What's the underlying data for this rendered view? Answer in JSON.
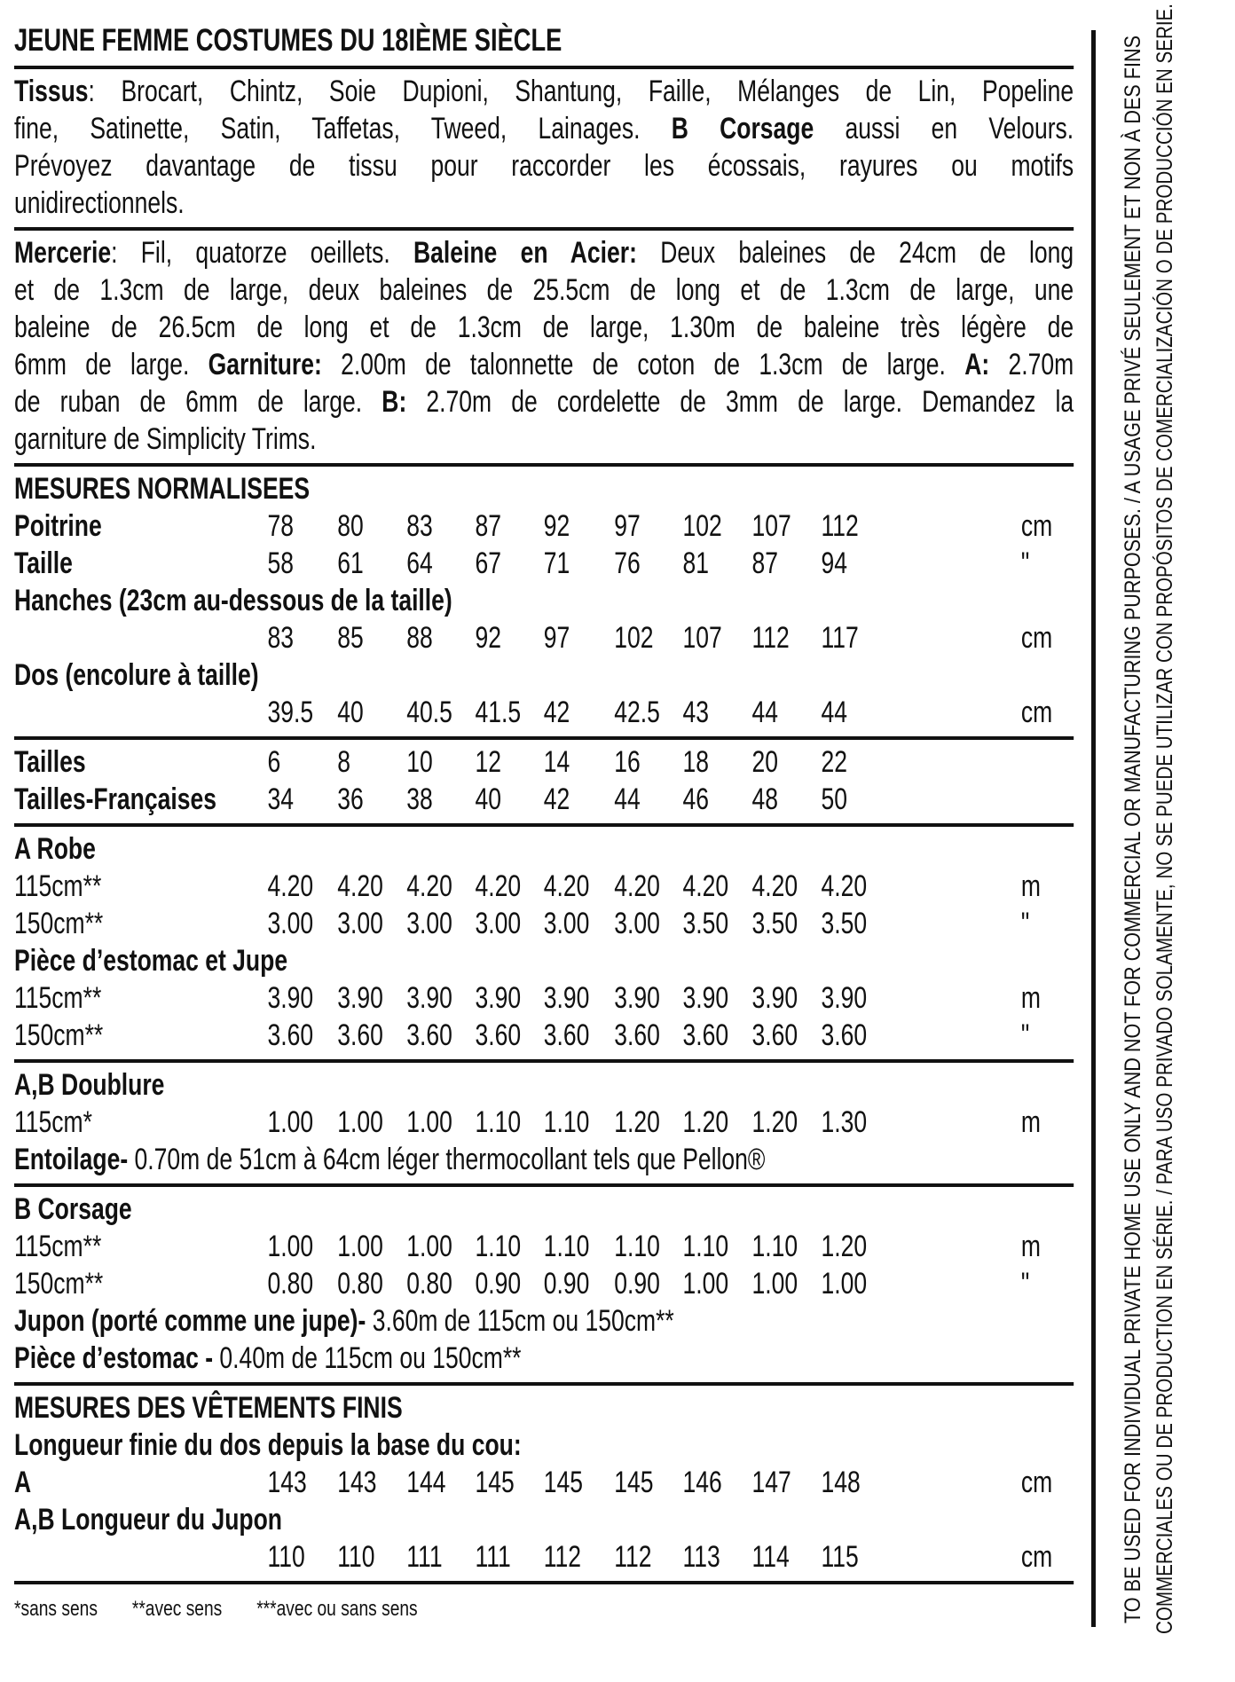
{
  "title": "JEUNE FEMME COSTUMES DU 18IÈME SIÈCLE",
  "tissus": [
    [
      {
        "b": true,
        "t": "Tissus"
      },
      {
        "t": ": Brocart, Chintz, Soie Dupioni, Shantung, Faille, Mélanges de Lin, Popeline"
      }
    ],
    [
      {
        "t": "fine, Satinette, Satin, Taffetas, Tweed, Lainages. "
      },
      {
        "b": true,
        "t": "B Corsage"
      },
      {
        "t": " aussi en Velours."
      }
    ],
    [
      {
        "t": "Prévoyez davantage de tissu pour raccorder les écossais, rayures ou motifs"
      }
    ],
    [
      {
        "t": "unidirectionnels."
      }
    ]
  ],
  "mercerie": [
    [
      {
        "b": true,
        "t": "Mercerie"
      },
      {
        "t": ": Fil, quatorze oeillets. "
      },
      {
        "b": true,
        "t": "Baleine en Acier:"
      },
      {
        "t": " Deux baleines de 24cm de long"
      }
    ],
    [
      {
        "t": "et de 1.3cm de large, deux baleines de 25.5cm de long et de 1.3cm de large, une"
      }
    ],
    [
      {
        "t": "baleine de 26.5cm de long et de 1.3cm de large, 1.30m de baleine très légère de"
      }
    ],
    [
      {
        "t": "6mm de large. "
      },
      {
        "b": true,
        "t": "Garniture:"
      },
      {
        "t": " 2.00m de talonnette de coton de 1.3cm de large. "
      },
      {
        "b": true,
        "t": "A:"
      },
      {
        "t": " 2.70m"
      }
    ],
    [
      {
        "t": "de ruban de 6mm de large. "
      },
      {
        "b": true,
        "t": "B:"
      },
      {
        "t": " 2.70m de cordelette de 3mm de large. Demandez la"
      }
    ],
    [
      {
        "t": "garniture de Simplicity Trims."
      }
    ]
  ],
  "tables": [
    [
      {
        "label": [
          {
            "b": true,
            "t": "MESURES NORMALISEES"
          }
        ]
      },
      {
        "label": [
          {
            "b": true,
            "t": "Poitrine"
          }
        ],
        "values": [
          "78",
          "80",
          "83",
          "87",
          "92",
          "97",
          "102",
          "107",
          "112"
        ],
        "unit": "cm"
      },
      {
        "label": [
          {
            "b": true,
            "t": "Taille"
          }
        ],
        "values": [
          "58",
          "61",
          "64",
          "67",
          "71",
          "76",
          "81",
          "87",
          "94"
        ],
        "unit": "\""
      },
      {
        "label": [
          {
            "b": true,
            "t": "Hanches (23cm au-dessous de la taille)"
          }
        ]
      },
      {
        "values": [
          "83",
          "85",
          "88",
          "92",
          "97",
          "102",
          "107",
          "112",
          "117"
        ],
        "unit": "cm"
      },
      {
        "label": [
          {
            "b": true,
            "t": "Dos (encolure à taille)"
          }
        ]
      },
      {
        "values": [
          "39.5",
          "40",
          "40.5",
          "41.5",
          "42",
          "42.5",
          "43",
          "44",
          "44"
        ],
        "unit": "cm"
      }
    ],
    [
      {
        "label": [
          {
            "b": true,
            "t": "Tailles"
          }
        ],
        "values": [
          "6",
          "8",
          "10",
          "12",
          "14",
          "16",
          "18",
          "20",
          "22"
        ]
      },
      {
        "label": [
          {
            "b": true,
            "t": "Tailles-Françaises"
          }
        ],
        "values": [
          "34",
          "36",
          "38",
          "40",
          "42",
          "44",
          "46",
          "48",
          "50"
        ]
      }
    ],
    [
      {
        "label": [
          {
            "b": true,
            "t": "A Robe"
          }
        ]
      },
      {
        "label": [
          {
            "t": "115cm**"
          }
        ],
        "values": [
          "4.20",
          "4.20",
          "4.20",
          "4.20",
          "4.20",
          "4.20",
          "4.20",
          "4.20",
          "4.20"
        ],
        "unit": "m"
      },
      {
        "label": [
          {
            "t": "150cm**"
          }
        ],
        "values": [
          "3.00",
          "3.00",
          "3.00",
          "3.00",
          "3.00",
          "3.00",
          "3.50",
          "3.50",
          "3.50"
        ],
        "unit": "\""
      },
      {
        "label": [
          {
            "b": true,
            "t": "Pièce d’estomac et Jupe"
          }
        ]
      },
      {
        "label": [
          {
            "t": "115cm**"
          }
        ],
        "values": [
          "3.90",
          "3.90",
          "3.90",
          "3.90",
          "3.90",
          "3.90",
          "3.90",
          "3.90",
          "3.90"
        ],
        "unit": "m"
      },
      {
        "label": [
          {
            "t": "150cm**"
          }
        ],
        "values": [
          "3.60",
          "3.60",
          "3.60",
          "3.60",
          "3.60",
          "3.60",
          "3.60",
          "3.60",
          "3.60"
        ],
        "unit": "\""
      }
    ],
    [
      {
        "label": [
          {
            "b": true,
            "t": "A,B Doublure"
          }
        ]
      },
      {
        "label": [
          {
            "t": "115cm*"
          }
        ],
        "values": [
          "1.00",
          "1.00",
          "1.00",
          "1.10",
          "1.10",
          "1.20",
          "1.20",
          "1.20",
          "1.30"
        ],
        "unit": "m"
      },
      {
        "label": [
          {
            "b": true,
            "t": "Entoilage-"
          },
          {
            "t": " 0.70m de 51cm à 64cm léger thermocollant tels que Pellon®"
          }
        ]
      }
    ],
    [
      {
        "label": [
          {
            "b": true,
            "t": "B Corsage"
          }
        ]
      },
      {
        "label": [
          {
            "t": "115cm**"
          }
        ],
        "values": [
          "1.00",
          "1.00",
          "1.00",
          "1.10",
          "1.10",
          "1.10",
          "1.10",
          "1.10",
          "1.20"
        ],
        "unit": "m"
      },
      {
        "label": [
          {
            "t": "150cm**"
          }
        ],
        "values": [
          "0.80",
          "0.80",
          "0.80",
          "0.90",
          "0.90",
          "0.90",
          "1.00",
          "1.00",
          "1.00"
        ],
        "unit": "\""
      },
      {
        "label": [
          {
            "b": true,
            "t": "Jupon (porté comme une jupe)-"
          },
          {
            "t": " 3.60m de 115cm ou 150cm**"
          }
        ]
      },
      {
        "label": [
          {
            "b": true,
            "t": "Pièce d’estomac -"
          },
          {
            "t": " 0.40m de 115cm ou 150cm**"
          }
        ]
      }
    ],
    [
      {
        "label": [
          {
            "b": true,
            "t": "MESURES DES VÊTEMENTS FINIS"
          }
        ]
      },
      {
        "label": [
          {
            "b": true,
            "t": "Longueur finie du dos depuis la base du cou:"
          }
        ]
      },
      {
        "label": [
          {
            "b": true,
            "t": "A"
          }
        ],
        "values": [
          "143",
          "143",
          "144",
          "145",
          "145",
          "145",
          "146",
          "147",
          "148"
        ],
        "unit": "cm"
      },
      {
        "label": [
          {
            "b": true,
            "t": "A,B Longueur du Jupon"
          }
        ]
      },
      {
        "values": [
          "110",
          "110",
          "111",
          "111",
          "112",
          "112",
          "113",
          "114",
          "115"
        ],
        "unit": "cm"
      }
    ]
  ],
  "footnotes": [
    "*sans sens",
    "**avec sens",
    "***avec ou sans sens"
  ],
  "side_notice": {
    "line1": "TO BE USED FOR INDIVIDUAL PRIVATE HOME USE ONLY AND NOT FOR COMMERCIAL OR MANUFACTURING PURPOSES. / A USAGE PRIVÉ SEULEMENT ET NON À DES FINS",
    "line2": "COMMERCIALES OU DE PRODUCTION EN SÉRIE. / PARA USO PRIVADO SOLAMENTE, NO SE PUEDE UTILIZAR CON PROPÓSITOS DE COMERCIALIZACIÓN O DE PRODUCCIÓN EN SERIE."
  }
}
